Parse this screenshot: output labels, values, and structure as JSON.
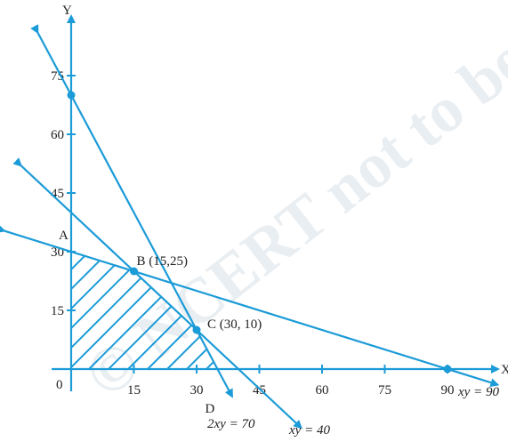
{
  "chart_data": {
    "type": "line",
    "axes": {
      "x_name": "X",
      "y_name": "Y",
      "origin_label": "0",
      "xlim": [
        0,
        100
      ],
      "ylim": [
        0,
        80
      ],
      "x_ticks": [
        15,
        30,
        45,
        60,
        75,
        90
      ],
      "y_ticks": [
        15,
        30,
        45,
        60,
        75
      ]
    },
    "lines": [
      {
        "label": "x + 3y = 90",
        "label_display": "xy = 90",
        "x": [
          -16,
          102
        ],
        "y": [
          35.33,
          -4
        ]
      },
      {
        "label": "x + y = 40",
        "label_display": "xy = 40",
        "x": [
          -12,
          55
        ],
        "y": [
          52,
          -15
        ]
      },
      {
        "label": "2x + y = 70",
        "label_display": "2xy = 70",
        "x": [
          -8,
          38.5
        ],
        "y": [
          86,
          -7
        ]
      }
    ],
    "points": [
      {
        "name": "A",
        "label": "A",
        "x": 0,
        "y": 30
      },
      {
        "name": "B",
        "label": "B (15,25)",
        "x": 15,
        "y": 25
      },
      {
        "name": "C",
        "label": "C (30, 10)",
        "x": 30,
        "y": 10
      },
      {
        "name": "D",
        "label": "D",
        "x": 35,
        "y": 0
      },
      {
        "name": "intercept-y70",
        "label": "",
        "x": 0,
        "y": 70
      },
      {
        "name": "intercept-x90",
        "label": "",
        "x": 90,
        "y": 0
      }
    ],
    "feasible_region": {
      "x": [
        0,
        0,
        15,
        30,
        35
      ],
      "y": [
        0,
        30,
        25,
        10,
        0
      ],
      "fill": "hatched"
    },
    "watermark": "© NCERT not to be republished",
    "colors": {
      "line": "#1b9bd7",
      "text": "#222222",
      "watermark": "#e9eef2"
    }
  }
}
